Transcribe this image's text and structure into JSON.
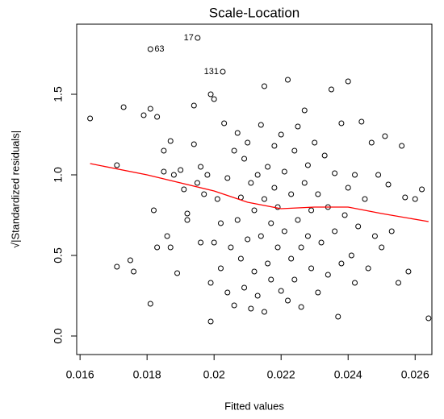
{
  "chart_data": {
    "type": "scatter",
    "title": "Scale-Location",
    "xlabel": "Fitted values",
    "ylabel": "√|Standardized residuals|",
    "x": [
      0.0163,
      0.0171,
      0.0171,
      0.0173,
      0.0175,
      0.0176,
      0.0179,
      0.0181,
      0.0181,
      0.0182,
      0.0183,
      0.0183,
      0.0185,
      0.0185,
      0.0186,
      0.0187,
      0.0187,
      0.0188,
      0.0189,
      0.019,
      0.0191,
      0.0192,
      0.0192,
      0.0194,
      0.0194,
      0.0195,
      0.0196,
      0.0196,
      0.0197,
      0.0198,
      0.0199,
      0.0199,
      0.0199,
      0.02,
      0.02,
      0.0201,
      0.0202,
      0.0202,
      0.0203,
      0.0204,
      0.0204,
      0.0205,
      0.0206,
      0.0206,
      0.0207,
      0.0207,
      0.0208,
      0.0208,
      0.0209,
      0.0209,
      0.021,
      0.021,
      0.0211,
      0.0211,
      0.0212,
      0.0212,
      0.0213,
      0.0213,
      0.0214,
      0.0214,
      0.0215,
      0.0215,
      0.0215,
      0.0216,
      0.0216,
      0.0217,
      0.0217,
      0.0218,
      0.0218,
      0.0219,
      0.0219,
      0.022,
      0.022,
      0.0221,
      0.0221,
      0.0222,
      0.0222,
      0.0223,
      0.0223,
      0.0224,
      0.0224,
      0.0225,
      0.0225,
      0.0226,
      0.0226,
      0.0227,
      0.0227,
      0.0228,
      0.0228,
      0.0229,
      0.0229,
      0.023,
      0.0231,
      0.0231,
      0.0232,
      0.0233,
      0.0234,
      0.0234,
      0.0235,
      0.0236,
      0.0236,
      0.0237,
      0.0238,
      0.0238,
      0.0239,
      0.024,
      0.024,
      0.0241,
      0.0242,
      0.0242,
      0.0243,
      0.0244,
      0.0245,
      0.0246,
      0.0247,
      0.0248,
      0.0249,
      0.025,
      0.0251,
      0.0252,
      0.0253,
      0.0255,
      0.0256,
      0.0257,
      0.0258,
      0.026,
      0.0262,
      0.0264,
      0.0181,
      0.01951,
      0.02026
    ],
    "y": [
      1.35,
      1.06,
      0.43,
      1.42,
      0.47,
      0.4,
      1.37,
      1.41,
      0.2,
      0.78,
      1.36,
      0.55,
      1.15,
      1.02,
      0.62,
      0.55,
      1.21,
      1.0,
      0.39,
      1.03,
      0.91,
      0.76,
      0.72,
      1.19,
      1.43,
      0.95,
      0.58,
      1.05,
      0.88,
      1.0,
      0.33,
      0.09,
      1.5,
      0.58,
      1.47,
      0.85,
      0.7,
      0.42,
      1.32,
      0.27,
      0.98,
      0.55,
      0.19,
      1.15,
      0.72,
      1.26,
      0.48,
      0.86,
      1.1,
      0.3,
      0.6,
      1.2,
      0.17,
      0.95,
      0.4,
      0.78,
      1.0,
      0.25,
      0.62,
      1.31,
      0.15,
      1.55,
      0.85,
      0.45,
      1.05,
      0.7,
      0.35,
      0.92,
      1.18,
      0.55,
      0.8,
      1.25,
      0.28,
      0.65,
      1.02,
      0.22,
      1.59,
      0.48,
      0.88,
      1.15,
      0.35,
      0.72,
      1.3,
      0.55,
      0.18,
      0.95,
      1.4,
      0.62,
      1.06,
      0.42,
      0.78,
      1.2,
      0.27,
      0.88,
      0.58,
      1.12,
      0.38,
      0.8,
      1.53,
      0.65,
      1.01,
      0.12,
      0.45,
      1.32,
      0.75,
      1.58,
      0.92,
      0.5,
      1.0,
      0.33,
      0.68,
      1.33,
      0.85,
      0.42,
      1.2,
      0.62,
      1.0,
      0.55,
      1.24,
      0.94,
      0.65,
      0.33,
      1.18,
      0.86,
      0.4,
      0.85,
      0.91,
      0.11,
      1.78,
      1.85,
      1.64
    ],
    "color": "#000000",
    "lines": [
      {
        "color": "#ff0000",
        "x": [
          0.0163,
          0.018,
          0.02,
          0.021,
          0.022,
          0.023,
          0.024,
          0.025,
          0.0264
        ],
        "y": [
          1.07,
          1.0,
          0.9,
          0.83,
          0.79,
          0.8,
          0.8,
          0.76,
          0.71
        ]
      }
    ],
    "annotations": [
      {
        "text": "63",
        "x": 0.0181,
        "y": 1.78
      },
      {
        "text": "17",
        "x": 0.01951,
        "y": 1.85
      },
      {
        "text": "131",
        "x": 0.02026,
        "y": 1.64
      }
    ],
    "xlim": [
      0.0159,
      0.0265
    ],
    "ylim": [
      -0.115,
      1.935
    ],
    "xticks": [
      0.016,
      0.018,
      0.02,
      0.022,
      0.024,
      0.026
    ],
    "yticks": [
      {
        "value": 0,
        "label": "0.0"
      },
      0.5,
      {
        "value": 1,
        "label": "1.0"
      },
      1.5
    ]
  }
}
